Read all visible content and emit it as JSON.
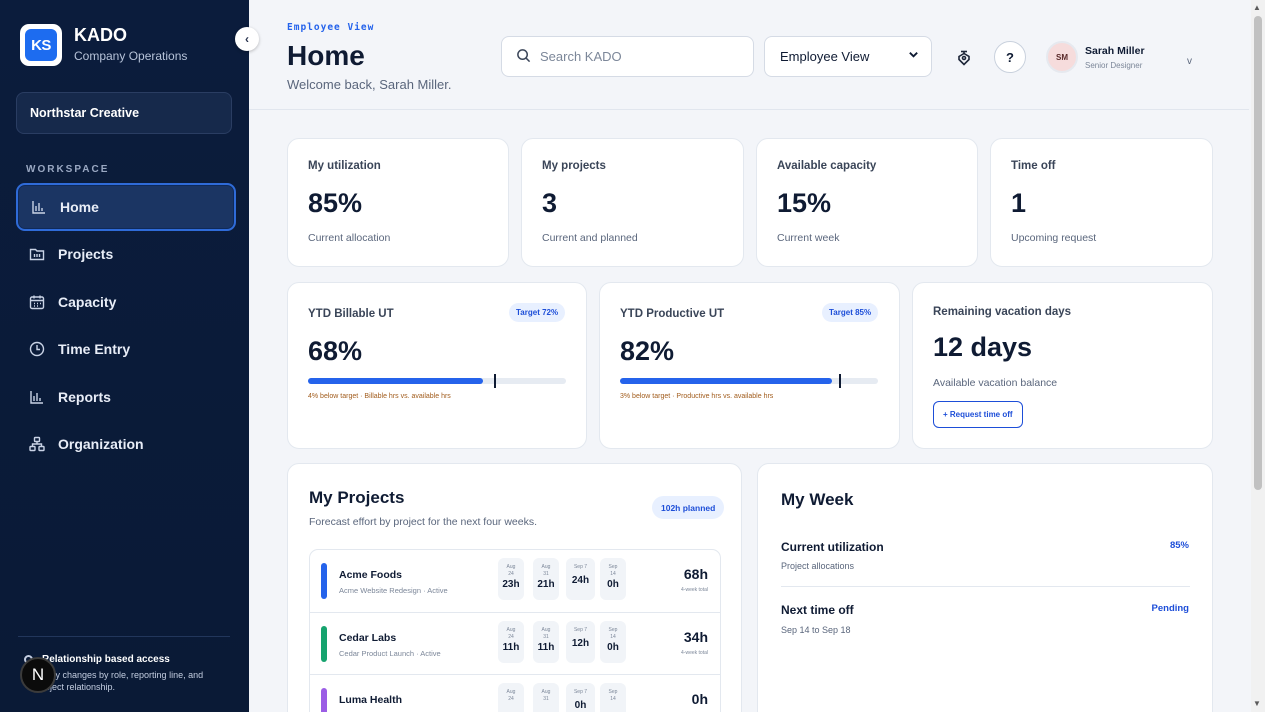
{
  "brand": {
    "logo_text": "KS",
    "name": "KADO",
    "subtitle": "Company Operations",
    "collapse_glyph": "‹"
  },
  "org": {
    "name": "Northstar Creative"
  },
  "sidebar": {
    "section_label": "WORKSPACE",
    "items": [
      {
        "label": "Home",
        "icon": "bar-chart-icon",
        "active": true
      },
      {
        "label": "Projects",
        "icon": "folder-icon",
        "active": false
      },
      {
        "label": "Capacity",
        "icon": "calendar-icon",
        "active": false
      },
      {
        "label": "Time Entry",
        "icon": "clock-icon",
        "active": false
      },
      {
        "label": "Reports",
        "icon": "bar-chart-icon",
        "active": false
      },
      {
        "label": "Organization",
        "icon": "org-chart-icon",
        "active": false
      }
    ],
    "access_title": "Relationship based access",
    "access_text": "bility changes by role, reporting line, and roject relationship.",
    "n_badge": "N"
  },
  "header": {
    "crumb": "Employee View",
    "title": "Home",
    "welcome": "Welcome back, Sarah Miller.",
    "search_placeholder": "Search KADO",
    "view_select": "Employee View",
    "help_label": "?",
    "user": {
      "initials": "SM",
      "name": "Sarah Miller",
      "role": "Senior Designer",
      "chevron": "v"
    }
  },
  "kpis": [
    {
      "label": "My utilization",
      "value": "85%",
      "sub": "Current allocation"
    },
    {
      "label": "My projects",
      "value": "3",
      "sub": "Current and planned"
    },
    {
      "label": "Available capacity",
      "value": "15%",
      "sub": "Current week"
    },
    {
      "label": "Time off",
      "value": "1",
      "sub": "Upcoming request"
    }
  ],
  "ytd": [
    {
      "label": "YTD Billable UT",
      "target": "Target 72%",
      "value": "68%",
      "progress": 68,
      "target_value": 72,
      "note": "4% below target · Billable hrs vs. available hrs"
    },
    {
      "label": "YTD Productive UT",
      "target": "Target 85%",
      "value": "82%",
      "progress": 82,
      "target_value": 85,
      "note": "3% below target · Productive hrs vs. available hrs"
    }
  ],
  "vacation": {
    "label": "Remaining vacation days",
    "value": "12 days",
    "sub": "Available vacation balance",
    "button": "+ Request time off"
  },
  "projects": {
    "title": "My Projects",
    "subtitle": "Forecast effort by project for the next four weeks.",
    "planned": "102h planned",
    "total_label": "4-week total",
    "weeks": [
      {
        "l1": "Aug",
        "l2": "24"
      },
      {
        "l1": "Aug",
        "l2": "31"
      },
      {
        "l1": "Sep 7",
        "l2": ""
      },
      {
        "l1": "Sep",
        "l2": "14"
      }
    ],
    "rows": [
      {
        "name": "Acme Foods",
        "meta": "Acme Website Redesign · Active",
        "color": "#2563eb",
        "hours": [
          "23h",
          "21h",
          "24h",
          "0h"
        ],
        "total": "68h"
      },
      {
        "name": "Cedar Labs",
        "meta": "Cedar Product Launch · Active",
        "color": "#16a36e",
        "hours": [
          "11h",
          "11h",
          "12h",
          "0h"
        ],
        "total": "34h"
      },
      {
        "name": "Luma Health",
        "meta": "",
        "color": "#9b5de5",
        "hours": [
          "",
          "",
          "0h",
          ""
        ],
        "total": "0h"
      }
    ]
  },
  "week": {
    "title": "My Week",
    "rows": [
      {
        "title": "Current utilization",
        "sub": "Project allocations",
        "value": "85%"
      },
      {
        "title": "Next time off",
        "sub": "Sep 14 to Sep 18",
        "value": "Pending"
      }
    ]
  },
  "colors": {
    "sidebar_bg": "#0b1c3c",
    "accent": "#2563eb",
    "warning_text": "#a15c1c"
  }
}
